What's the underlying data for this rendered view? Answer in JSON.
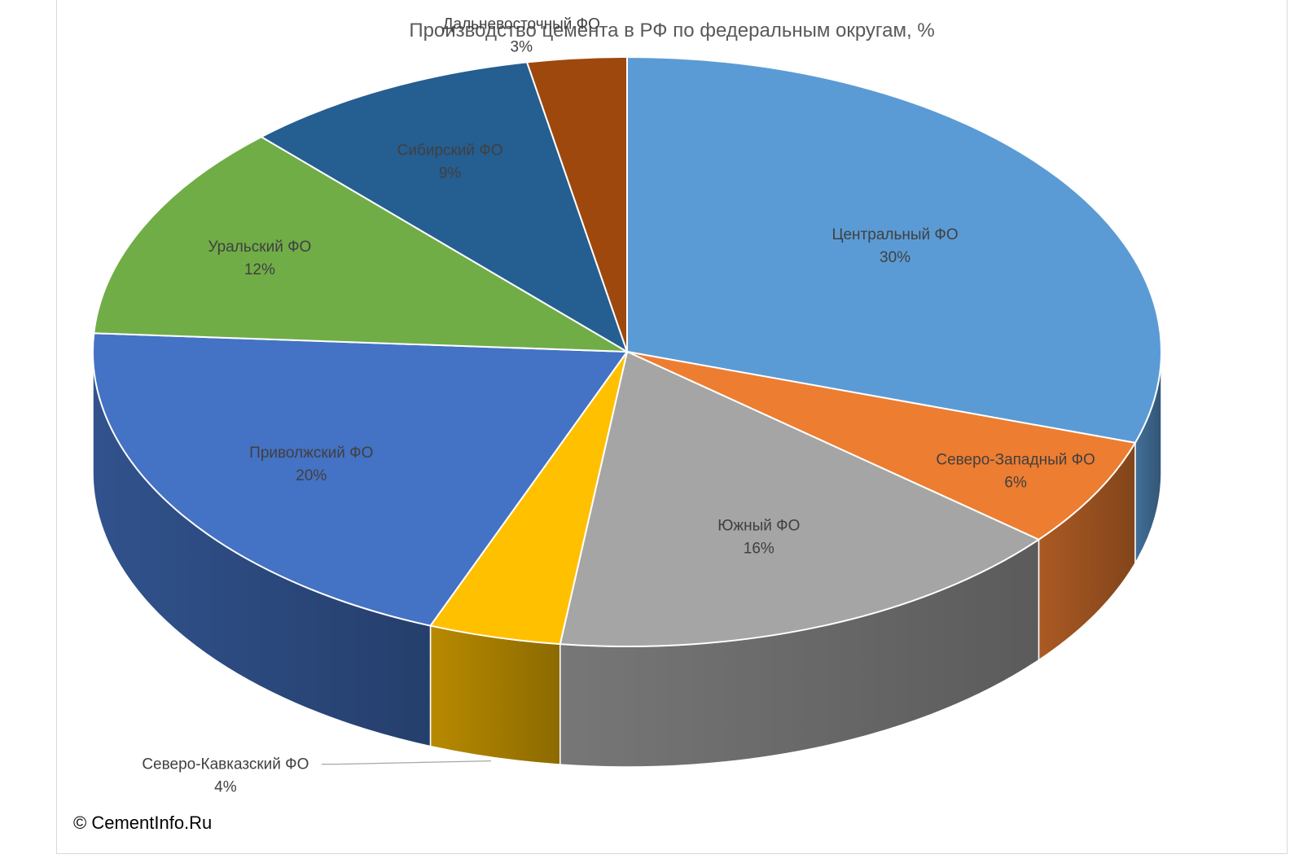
{
  "chart_data": {
    "type": "pie",
    "title": "Производство цемента в РФ по федеральным округам, %",
    "slices": [
      {
        "name": "Центральный ФО",
        "value": 30,
        "label": "30%",
        "color": "#5B9BD5"
      },
      {
        "name": "Северо-Западный ФО",
        "value": 6,
        "label": "6%",
        "color": "#ED7D31"
      },
      {
        "name": "Южный ФО",
        "value": 16,
        "label": "16%",
        "color": "#A5A5A5"
      },
      {
        "name": "Северо-Кавказский ФО",
        "value": 4,
        "label": "4%",
        "color": "#FFC000"
      },
      {
        "name": "Приволжский ФО",
        "value": 20,
        "label": "20%",
        "color": "#4472C4"
      },
      {
        "name": "Уральский ФО",
        "value": 12,
        "label": "12%",
        "color": "#70AD47"
      },
      {
        "name": "Сибирский ФО",
        "value": 9,
        "label": "9%",
        "color": "#255E91"
      },
      {
        "name": "Дальневосточный ФО",
        "value": 3,
        "label": "3%",
        "color": "#9E480E"
      }
    ],
    "legend": "none",
    "style": "3d-pie"
  },
  "footer": {
    "copyright": "© CementInfo.Ru"
  }
}
